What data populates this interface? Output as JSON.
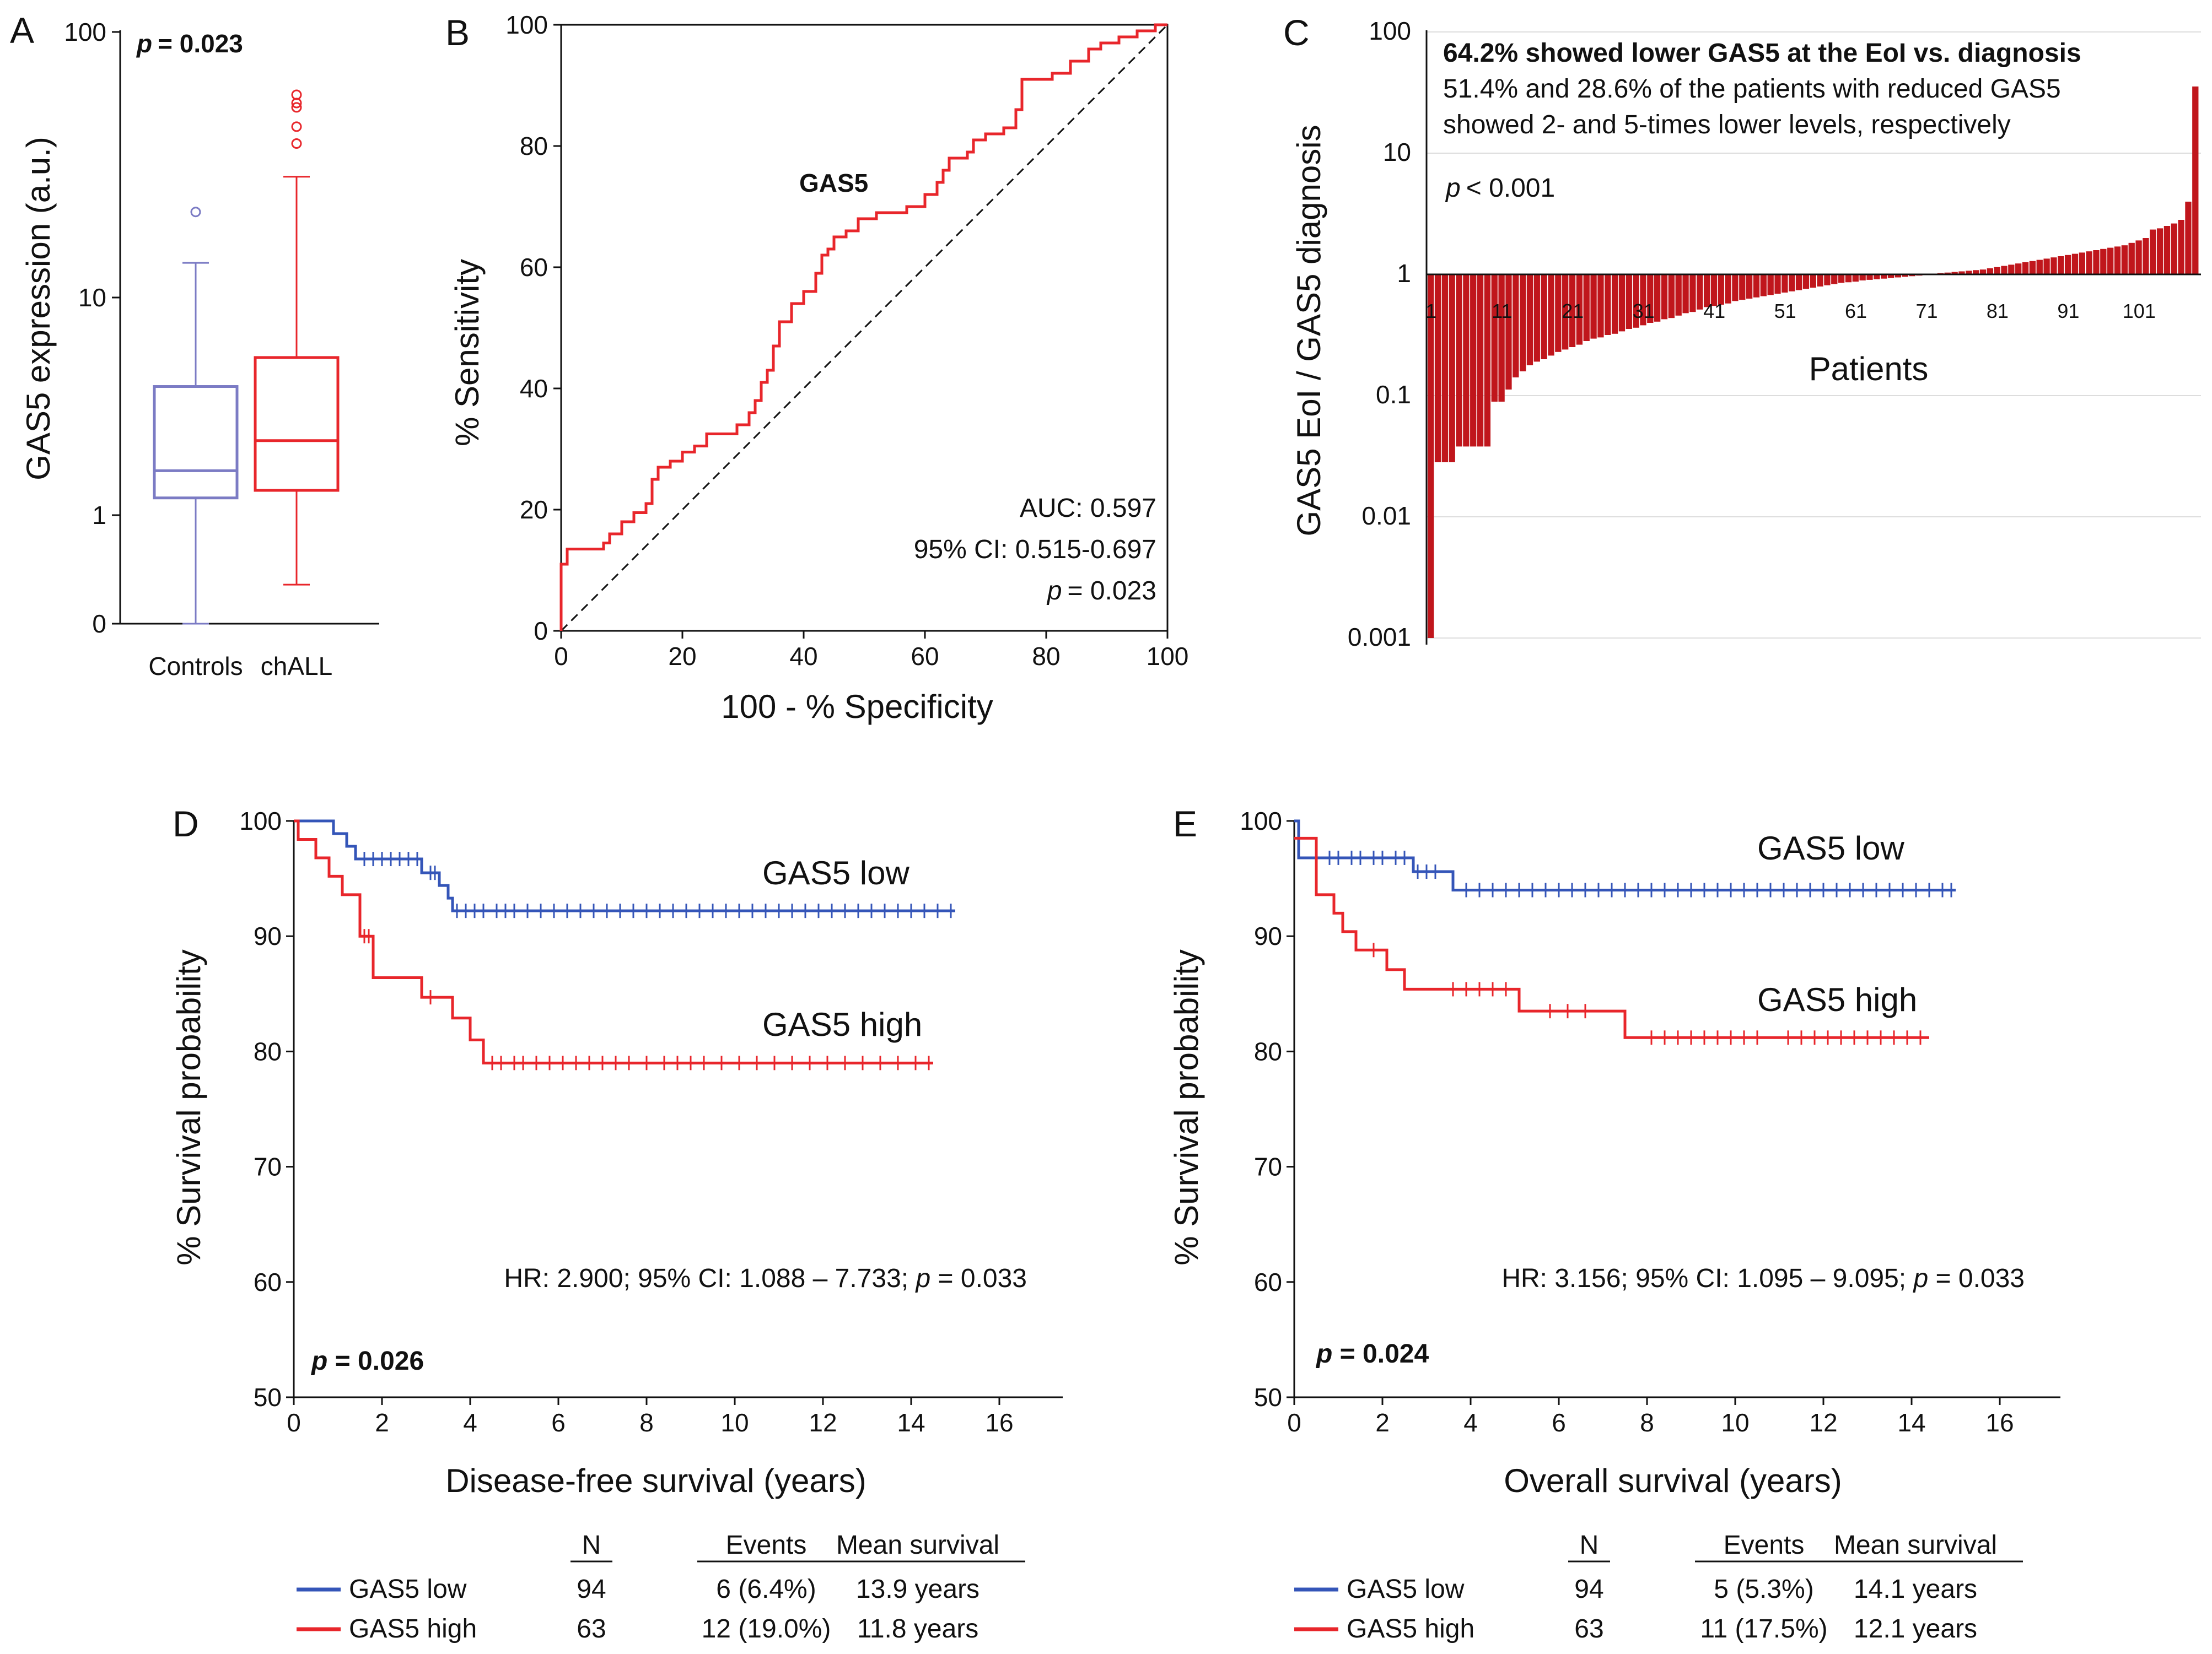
{
  "colors": {
    "low": "#3455b8",
    "high": "#e8262b",
    "bar": "#c0161c",
    "box_controls": "#7b7bc4",
    "box_chall": "#e8262b",
    "text": "#111111"
  },
  "chart_data": [
    {
      "panel": "A",
      "type": "box",
      "ylabel": "GAS5 expression (a.u.)",
      "yscale": "log-like",
      "y_ticks": [
        "100",
        "10",
        "1",
        "0"
      ],
      "annotation_p_label": "p",
      "annotation_p_value": "= 0.023",
      "groups": [
        {
          "name": "Controls",
          "color_key": "box_controls",
          "whisker_low": 0.0,
          "q1": 1.2,
          "median": 1.6,
          "q3": 3.9,
          "whisker_high": 13.5,
          "outliers": [
            21
          ]
        },
        {
          "name": "chALL",
          "color_key": "box_chall",
          "whisker_low": 0.36,
          "q1": 1.3,
          "median": 2.2,
          "q3": 5.3,
          "whisker_high": 28.5,
          "outliers": [
            38,
            44,
            52,
            54,
            58
          ]
        }
      ]
    },
    {
      "panel": "B",
      "type": "line",
      "series_name": "GAS5",
      "xlabel": "100 - % Specificity",
      "ylabel": "% Sensitivity",
      "xlim": [
        0,
        100
      ],
      "ylim": [
        0,
        100
      ],
      "x_ticks": [
        "0",
        "20",
        "40",
        "60",
        "80",
        "100"
      ],
      "y_ticks": [
        "0",
        "20",
        "40",
        "60",
        "80",
        "100"
      ],
      "auc_text": "AUC: 0.597",
      "ci_text": "95% CI: 0.515-0.697",
      "p_label": "p",
      "p_value": "= 0.023",
      "roc_points": [
        [
          0,
          0
        ],
        [
          0,
          11
        ],
        [
          1,
          11
        ],
        [
          1,
          13.5
        ],
        [
          7,
          13.5
        ],
        [
          7,
          14.5
        ],
        [
          8,
          14.5
        ],
        [
          8,
          16
        ],
        [
          10,
          16
        ],
        [
          10,
          18
        ],
        [
          12,
          18
        ],
        [
          12,
          19.5
        ],
        [
          14,
          19.5
        ],
        [
          14,
          21
        ],
        [
          15,
          21
        ],
        [
          15,
          25
        ],
        [
          16,
          25
        ],
        [
          16,
          27
        ],
        [
          18,
          27
        ],
        [
          18,
          28
        ],
        [
          20,
          28
        ],
        [
          20,
          29.5
        ],
        [
          22,
          29.5
        ],
        [
          22,
          30.5
        ],
        [
          24,
          30.5
        ],
        [
          24,
          32.5
        ],
        [
          29,
          32.5
        ],
        [
          29,
          34
        ],
        [
          31,
          34
        ],
        [
          31,
          36
        ],
        [
          32,
          36
        ],
        [
          32,
          38
        ],
        [
          33,
          38
        ],
        [
          33,
          41
        ],
        [
          34,
          41
        ],
        [
          34,
          43
        ],
        [
          35,
          43
        ],
        [
          35,
          47
        ],
        [
          36,
          47
        ],
        [
          36,
          51
        ],
        [
          38,
          51
        ],
        [
          38,
          54
        ],
        [
          40,
          54
        ],
        [
          40,
          56
        ],
        [
          42,
          56
        ],
        [
          42,
          59
        ],
        [
          43,
          59
        ],
        [
          43,
          62
        ],
        [
          44,
          62
        ],
        [
          44,
          63
        ],
        [
          45,
          63
        ],
        [
          45,
          65
        ],
        [
          47,
          65
        ],
        [
          47,
          66
        ],
        [
          49,
          66
        ],
        [
          49,
          68
        ],
        [
          52,
          68
        ],
        [
          52,
          69
        ],
        [
          57,
          69
        ],
        [
          57,
          70
        ],
        [
          60,
          70
        ],
        [
          60,
          72
        ],
        [
          62,
          72
        ],
        [
          62,
          74
        ],
        [
          63,
          74
        ],
        [
          63,
          76
        ],
        [
          64,
          76
        ],
        [
          64,
          78
        ],
        [
          67,
          78
        ],
        [
          67,
          79
        ],
        [
          68,
          79
        ],
        [
          68,
          81
        ],
        [
          70,
          81
        ],
        [
          70,
          82
        ],
        [
          73,
          82
        ],
        [
          73,
          83
        ],
        [
          75,
          83
        ],
        [
          75,
          86
        ],
        [
          76,
          86
        ],
        [
          76,
          91
        ],
        [
          81,
          91
        ],
        [
          81,
          92
        ],
        [
          84,
          92
        ],
        [
          84,
          94
        ],
        [
          87,
          94
        ],
        [
          87,
          96
        ],
        [
          89,
          96
        ],
        [
          89,
          97
        ],
        [
          92,
          97
        ],
        [
          92,
          98
        ],
        [
          95,
          98
        ],
        [
          95,
          99
        ],
        [
          98,
          99
        ],
        [
          98,
          100
        ],
        [
          100,
          100
        ]
      ]
    },
    {
      "panel": "C",
      "type": "bar",
      "yscale": "log",
      "ylabel": "GAS5 EoI / GAS5 diagnosis",
      "xlabel": "Patients",
      "y_ticks": [
        "100",
        "10",
        "1",
        "0.1",
        "0.01",
        "0.001"
      ],
      "x_ticks": [
        "1",
        "11",
        "21",
        "31",
        "41",
        "51",
        "61",
        "71",
        "81",
        "91",
        "101"
      ],
      "n_patients": 109,
      "title_line": "64.2% showed lower GAS5 at the EoI vs. diagnosis",
      "sub_line_1": "51.4% and 28.6% of the patients with reduced GAS5",
      "sub_line_2": "showed 2- and 5-times lower levels, respectively",
      "p_label": "p",
      "p_value": "< 0.001",
      "log_values": [
        -3.0,
        -1.55,
        -1.55,
        -1.55,
        -1.42,
        -1.42,
        -1.42,
        -1.42,
        -1.42,
        -1.05,
        -1.05,
        -0.95,
        -0.85,
        -0.8,
        -0.75,
        -0.72,
        -0.7,
        -0.67,
        -0.64,
        -0.62,
        -0.6,
        -0.58,
        -0.55,
        -0.53,
        -0.52,
        -0.5,
        -0.49,
        -0.47,
        -0.45,
        -0.44,
        -0.42,
        -0.4,
        -0.39,
        -0.37,
        -0.36,
        -0.34,
        -0.32,
        -0.31,
        -0.29,
        -0.27,
        -0.26,
        -0.25,
        -0.24,
        -0.22,
        -0.21,
        -0.2,
        -0.19,
        -0.18,
        -0.17,
        -0.16,
        -0.15,
        -0.14,
        -0.13,
        -0.12,
        -0.11,
        -0.1,
        -0.09,
        -0.08,
        -0.07,
        -0.065,
        -0.06,
        -0.05,
        -0.045,
        -0.04,
        -0.035,
        -0.03,
        -0.025,
        -0.02,
        -0.015,
        -0.01,
        0.0,
        0.005,
        0.01,
        0.015,
        0.02,
        0.025,
        0.03,
        0.035,
        0.04,
        0.05,
        0.06,
        0.07,
        0.08,
        0.09,
        0.1,
        0.11,
        0.12,
        0.13,
        0.14,
        0.15,
        0.16,
        0.17,
        0.18,
        0.19,
        0.2,
        0.21,
        0.22,
        0.23,
        0.24,
        0.26,
        0.28,
        0.3,
        0.37,
        0.38,
        0.4,
        0.42,
        0.45,
        0.6,
        1.55
      ]
    },
    {
      "panel": "D",
      "type": "line",
      "xlabel": "Disease-free survival (years)",
      "ylabel": "% Survival probability",
      "xlim": [
        0,
        17.5
      ],
      "ylim": [
        50,
        100
      ],
      "x_ticks": [
        "0",
        "2",
        "4",
        "6",
        "8",
        "10",
        "12",
        "14",
        "16"
      ],
      "y_ticks": [
        "50",
        "60",
        "70",
        "80",
        "90",
        "100"
      ],
      "hr_text": "HR: 2.900; 95% CI: 1.088 – 7.733; ",
      "hr_p_label": "p",
      "hr_p_value": " = 0.033",
      "p_label": "p",
      "p_value": " = 0.026",
      "series": [
        {
          "name": "GAS5 low",
          "color_key": "low",
          "steps": [
            [
              0,
              100
            ],
            [
              0.9,
              100
            ],
            [
              0.9,
              98.9
            ],
            [
              1.2,
              98.9
            ],
            [
              1.2,
              97.8
            ],
            [
              1.4,
              97.8
            ],
            [
              1.4,
              96.7
            ],
            [
              2.9,
              96.7
            ],
            [
              2.9,
              95.5
            ],
            [
              3.3,
              95.5
            ],
            [
              3.3,
              94.4
            ],
            [
              3.5,
              94.4
            ],
            [
              3.5,
              93.3
            ],
            [
              3.6,
              93.3
            ],
            [
              3.6,
              92.2
            ],
            [
              15.0,
              92.2
            ]
          ],
          "censor": [
            1.6,
            1.8,
            2.0,
            2.2,
            2.4,
            2.6,
            2.8,
            3.1,
            3.2,
            3.7,
            3.9,
            4.1,
            4.3,
            4.6,
            4.8,
            5.0,
            5.3,
            5.6,
            5.9,
            6.2,
            6.5,
            6.8,
            7.1,
            7.4,
            7.7,
            8.0,
            8.3,
            8.6,
            8.9,
            9.2,
            9.5,
            9.8,
            10.1,
            10.4,
            10.7,
            11.0,
            11.3,
            11.6,
            11.9,
            12.2,
            12.5,
            12.8,
            13.1,
            13.4,
            13.7,
            14.0,
            14.3,
            14.6,
            14.9
          ]
        },
        {
          "name": "GAS5 high",
          "color_key": "high",
          "steps": [
            [
              0,
              100
            ],
            [
              0.1,
              100
            ],
            [
              0.1,
              98.4
            ],
            [
              0.5,
              98.4
            ],
            [
              0.5,
              96.8
            ],
            [
              0.8,
              96.8
            ],
            [
              0.8,
              95.2
            ],
            [
              1.1,
              95.2
            ],
            [
              1.1,
              93.6
            ],
            [
              1.5,
              93.6
            ],
            [
              1.5,
              90.0
            ],
            [
              1.8,
              90.0
            ],
            [
              1.8,
              86.4
            ],
            [
              2.9,
              86.4
            ],
            [
              2.9,
              84.7
            ],
            [
              3.6,
              84.7
            ],
            [
              3.6,
              82.9
            ],
            [
              4.0,
              82.9
            ],
            [
              4.0,
              81.0
            ],
            [
              4.3,
              81.0
            ],
            [
              4.3,
              79.0
            ],
            [
              14.5,
              79.0
            ]
          ],
          "censor": [
            1.6,
            1.7,
            3.1,
            4.5,
            4.7,
            5.0,
            5.2,
            5.5,
            5.8,
            6.1,
            6.4,
            6.7,
            7.0,
            7.3,
            7.6,
            8.0,
            8.4,
            8.7,
            9.0,
            9.3,
            9.7,
            10.1,
            10.5,
            10.9,
            11.3,
            11.7,
            12.1,
            12.5,
            12.9,
            13.3,
            13.7,
            14.1,
            14.4
          ]
        }
      ],
      "legend": {
        "headers": [
          "N",
          "Events",
          "Mean survival"
        ],
        "rows": [
          {
            "name": "GAS5 low",
            "n": "94",
            "events": "6 (6.4%)",
            "mean": "13.9 years"
          },
          {
            "name": "GAS5 high",
            "n": "63",
            "events": "12 (19.0%)",
            "mean": "11.8 years"
          }
        ]
      }
    },
    {
      "panel": "E",
      "type": "line",
      "xlabel": "Overall survival (years)",
      "ylabel": "% Survival probability",
      "xlim": [
        0,
        17.5
      ],
      "ylim": [
        50,
        100
      ],
      "x_ticks": [
        "0",
        "2",
        "4",
        "6",
        "8",
        "10",
        "12",
        "14",
        "16"
      ],
      "y_ticks": [
        "50",
        "60",
        "70",
        "80",
        "90",
        "100"
      ],
      "hr_text": "HR: 3.156; 95% CI: 1.095 – 9.095; ",
      "hr_p_label": "p",
      "hr_p_value": " = 0.033",
      "p_label": "p",
      "p_value": " = 0.024",
      "series": [
        {
          "name": "GAS5 low",
          "color_key": "low",
          "steps": [
            [
              0,
              100
            ],
            [
              0.1,
              100
            ],
            [
              0.1,
              96.8
            ],
            [
              2.7,
              96.8
            ],
            [
              2.7,
              95.6
            ],
            [
              3.6,
              95.6
            ],
            [
              3.6,
              94.0
            ],
            [
              15.0,
              94.0
            ]
          ],
          "censor": [
            0.5,
            0.8,
            1.0,
            1.3,
            1.5,
            1.8,
            2.0,
            2.3,
            2.5,
            2.8,
            3.0,
            3.2,
            3.9,
            4.2,
            4.5,
            4.8,
            5.1,
            5.4,
            5.7,
            6.0,
            6.3,
            6.6,
            6.9,
            7.2,
            7.5,
            7.8,
            8.1,
            8.4,
            8.7,
            9.0,
            9.3,
            9.6,
            9.9,
            10.2,
            10.5,
            10.8,
            11.1,
            11.4,
            11.7,
            12.0,
            12.3,
            12.6,
            12.9,
            13.2,
            13.5,
            13.8,
            14.1,
            14.4,
            14.7,
            14.9
          ]
        },
        {
          "name": "GAS5 high",
          "color_key": "high",
          "steps": [
            [
              0,
              98.5
            ],
            [
              0.5,
              98.5
            ],
            [
              0.5,
              93.6
            ],
            [
              0.9,
              93.6
            ],
            [
              0.9,
              92.0
            ],
            [
              1.1,
              92.0
            ],
            [
              1.1,
              90.4
            ],
            [
              1.4,
              90.4
            ],
            [
              1.4,
              88.8
            ],
            [
              2.1,
              88.8
            ],
            [
              2.1,
              87.1
            ],
            [
              2.5,
              87.1
            ],
            [
              2.5,
              85.4
            ],
            [
              5.1,
              85.4
            ],
            [
              5.1,
              83.5
            ],
            [
              7.5,
              83.5
            ],
            [
              7.5,
              81.2
            ],
            [
              14.4,
              81.2
            ]
          ],
          "censor": [
            1.8,
            3.6,
            3.9,
            4.2,
            4.5,
            4.8,
            5.8,
            6.2,
            6.6,
            8.1,
            8.4,
            8.7,
            9.0,
            9.3,
            9.6,
            9.9,
            10.2,
            10.5,
            11.2,
            11.5,
            11.8,
            12.1,
            12.4,
            12.7,
            13.0,
            13.3,
            13.6,
            13.9,
            14.2
          ]
        }
      ],
      "legend": {
        "headers": [
          "N",
          "Events",
          "Mean survival"
        ],
        "rows": [
          {
            "name": "GAS5 low",
            "n": "94",
            "events": "5 (5.3%)",
            "mean": "14.1 years"
          },
          {
            "name": "GAS5 high",
            "n": "63",
            "events": "11 (17.5%)",
            "mean": "12.1 years"
          }
        ]
      }
    }
  ]
}
